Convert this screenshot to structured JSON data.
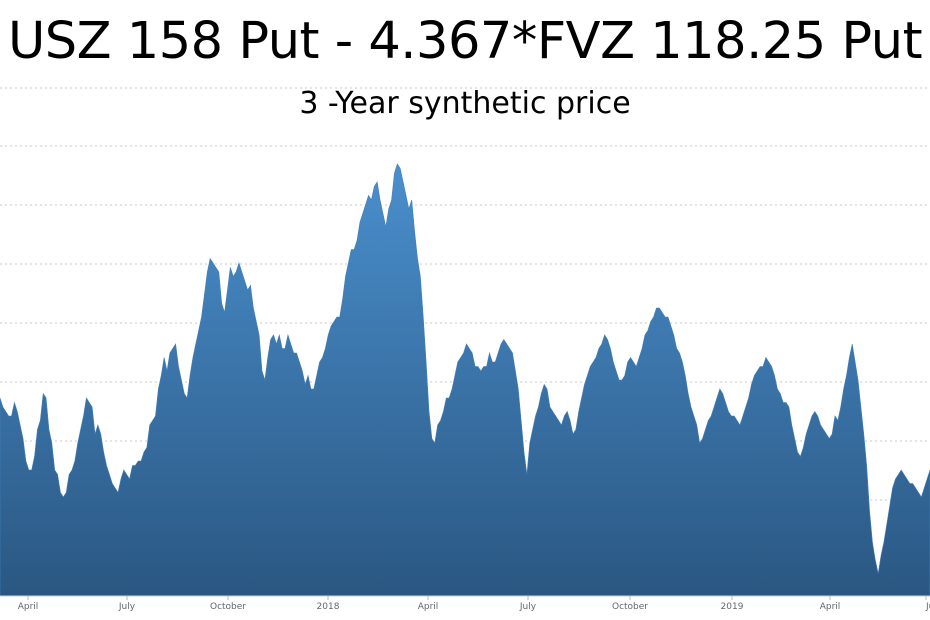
{
  "chart_data": {
    "type": "area",
    "title": "USZ 158 Put - 4.367*FVZ 118.25 Put",
    "subtitle": "3 -Year synthetic price",
    "xlabel": "",
    "ylabel": "",
    "x_tick_labels": [
      "April",
      "July",
      "October",
      "2018",
      "April",
      "July",
      "October",
      "2019",
      "April",
      "Ju"
    ],
    "y_tick_labels": [],
    "ylim": [
      0,
      100
    ],
    "grid": "horizontal-dotted",
    "legend": "none",
    "fill_color_top": "#4a8fcd",
    "fill_color_bottom": "#2a5782",
    "series": [
      {
        "values": [
          44,
          42,
          41,
          40,
          40,
          43,
          41,
          38,
          35,
          30,
          28,
          28,
          31,
          37,
          39,
          45,
          44,
          37,
          34,
          28,
          27,
          23,
          22,
          23,
          27,
          28,
          30,
          34,
          37,
          40,
          44,
          43,
          42,
          36,
          38,
          36,
          32,
          29,
          27,
          25,
          24,
          23,
          26,
          28,
          27,
          26,
          29,
          29,
          30,
          30,
          32,
          33,
          38,
          39,
          40,
          46,
          49,
          53,
          50,
          54,
          55,
          56,
          51,
          48,
          45,
          44,
          49,
          53,
          56,
          59,
          62,
          67,
          72,
          75,
          74,
          73,
          72,
          65,
          63,
          68,
          73,
          71,
          72,
          74,
          72,
          70,
          68,
          69,
          64,
          61,
          58,
          50,
          48,
          53,
          57,
          58,
          56,
          58,
          55,
          55,
          58,
          56,
          54,
          54,
          52,
          50,
          47,
          49,
          46,
          46,
          49,
          52,
          53,
          55,
          58,
          60,
          61,
          62,
          62,
          66,
          71,
          74,
          77,
          77,
          79,
          83,
          85,
          87,
          89,
          88,
          91,
          92,
          88,
          85,
          82,
          86,
          88,
          94,
          96,
          95,
          92,
          89,
          86,
          88,
          81,
          75,
          71,
          62,
          52,
          41,
          35,
          34,
          38,
          39,
          41,
          44,
          44,
          46,
          49,
          52,
          53,
          54,
          56,
          55,
          54,
          51,
          51,
          50,
          51,
          51,
          54,
          52,
          52,
          54,
          56,
          57,
          56,
          55,
          54,
          50,
          46,
          39,
          32,
          27,
          34,
          37,
          40,
          42,
          45,
          47,
          46,
          42,
          41,
          40,
          39,
          38,
          40,
          41,
          39,
          36,
          37,
          41,
          44,
          47,
          49,
          51,
          52,
          53,
          55,
          56,
          58,
          57,
          55,
          52,
          50,
          48,
          48,
          49,
          52,
          53,
          52,
          51,
          53,
          55,
          58,
          59,
          61,
          62,
          64,
          64,
          63,
          62,
          62,
          60,
          58,
          55,
          54,
          52,
          49,
          45,
          42,
          40,
          38,
          34,
          35,
          37,
          39,
          40,
          42,
          44,
          46,
          45,
          43,
          41,
          40,
          40,
          39,
          38,
          40,
          42,
          44,
          47,
          49,
          50,
          51,
          51,
          53,
          52,
          51,
          49,
          46,
          45,
          43,
          43,
          42,
          38,
          35,
          32,
          31,
          33,
          36,
          38,
          40,
          41,
          40,
          38,
          37,
          36,
          35,
          36,
          40,
          39,
          42,
          46,
          49,
          53,
          56,
          52,
          48,
          42,
          36,
          29,
          19,
          12,
          8,
          5,
          9,
          12,
          16,
          20,
          24,
          26,
          27,
          28,
          27,
          26,
          25,
          25,
          24,
          23,
          22,
          24,
          26,
          28
        ]
      }
    ]
  }
}
